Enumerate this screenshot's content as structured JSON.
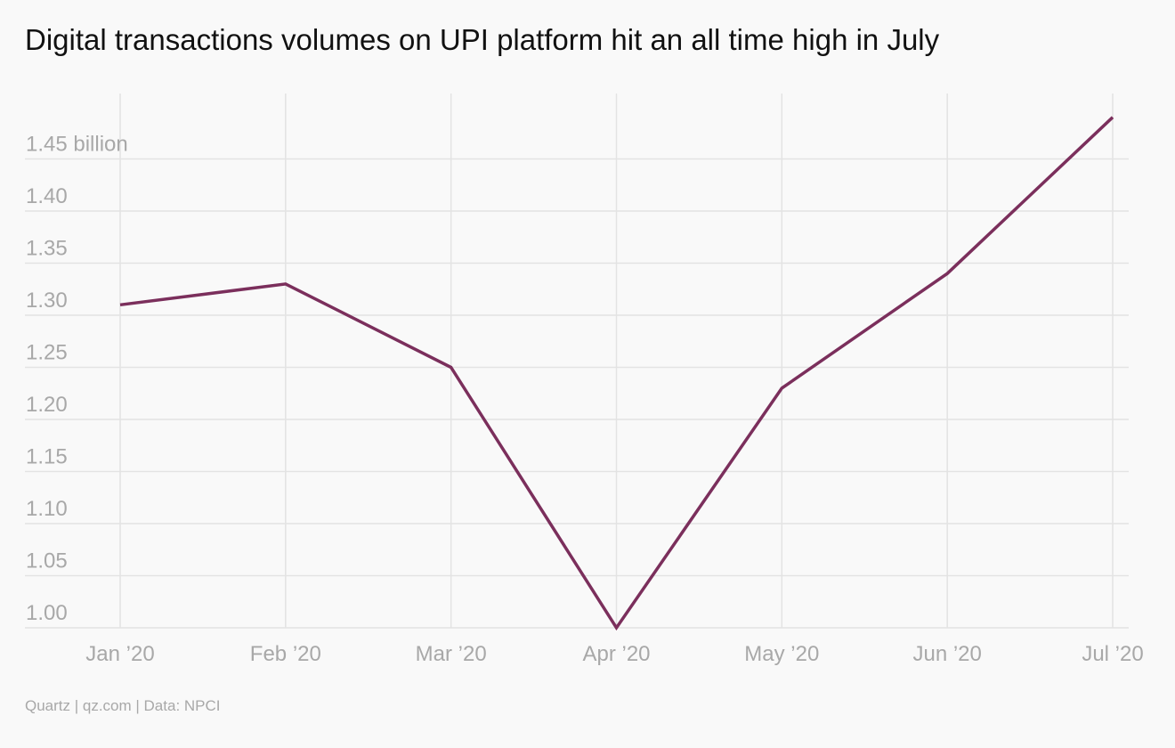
{
  "title": "Digital transactions volumes on UPI platform hit an all time high in July",
  "footer": "Quartz | qz.com | Data: NPCI",
  "chart_data": {
    "type": "line",
    "title": "Digital transactions volumes on UPI platform hit an all time high in July",
    "xlabel": "",
    "ylabel": "",
    "categories": [
      "Jan ’20",
      "Feb ’20",
      "Mar ’20",
      "Apr ’20",
      "May ’20",
      "Jun ’20",
      "Jul ’20"
    ],
    "series": [
      {
        "values": [
          1.31,
          1.33,
          1.25,
          1.0,
          1.23,
          1.34,
          1.49
        ],
        "color": "#7b2f5c"
      }
    ],
    "y_ticks": [
      1.0,
      1.05,
      1.1,
      1.15,
      1.2,
      1.25,
      1.3,
      1.35,
      1.4,
      1.45
    ],
    "y_tick_labels": [
      "1.00",
      "1.05",
      "1.10",
      "1.15",
      "1.20",
      "1.25",
      "1.30",
      "1.35",
      "1.40",
      "1.45 billion"
    ],
    "ylim": [
      1.0,
      1.5
    ],
    "grid": true,
    "colors": {
      "line": "#7b2f5c",
      "grid": "#e3e3e3",
      "tick_label": "#a8a8a8",
      "background": "#f9f9f9"
    }
  }
}
